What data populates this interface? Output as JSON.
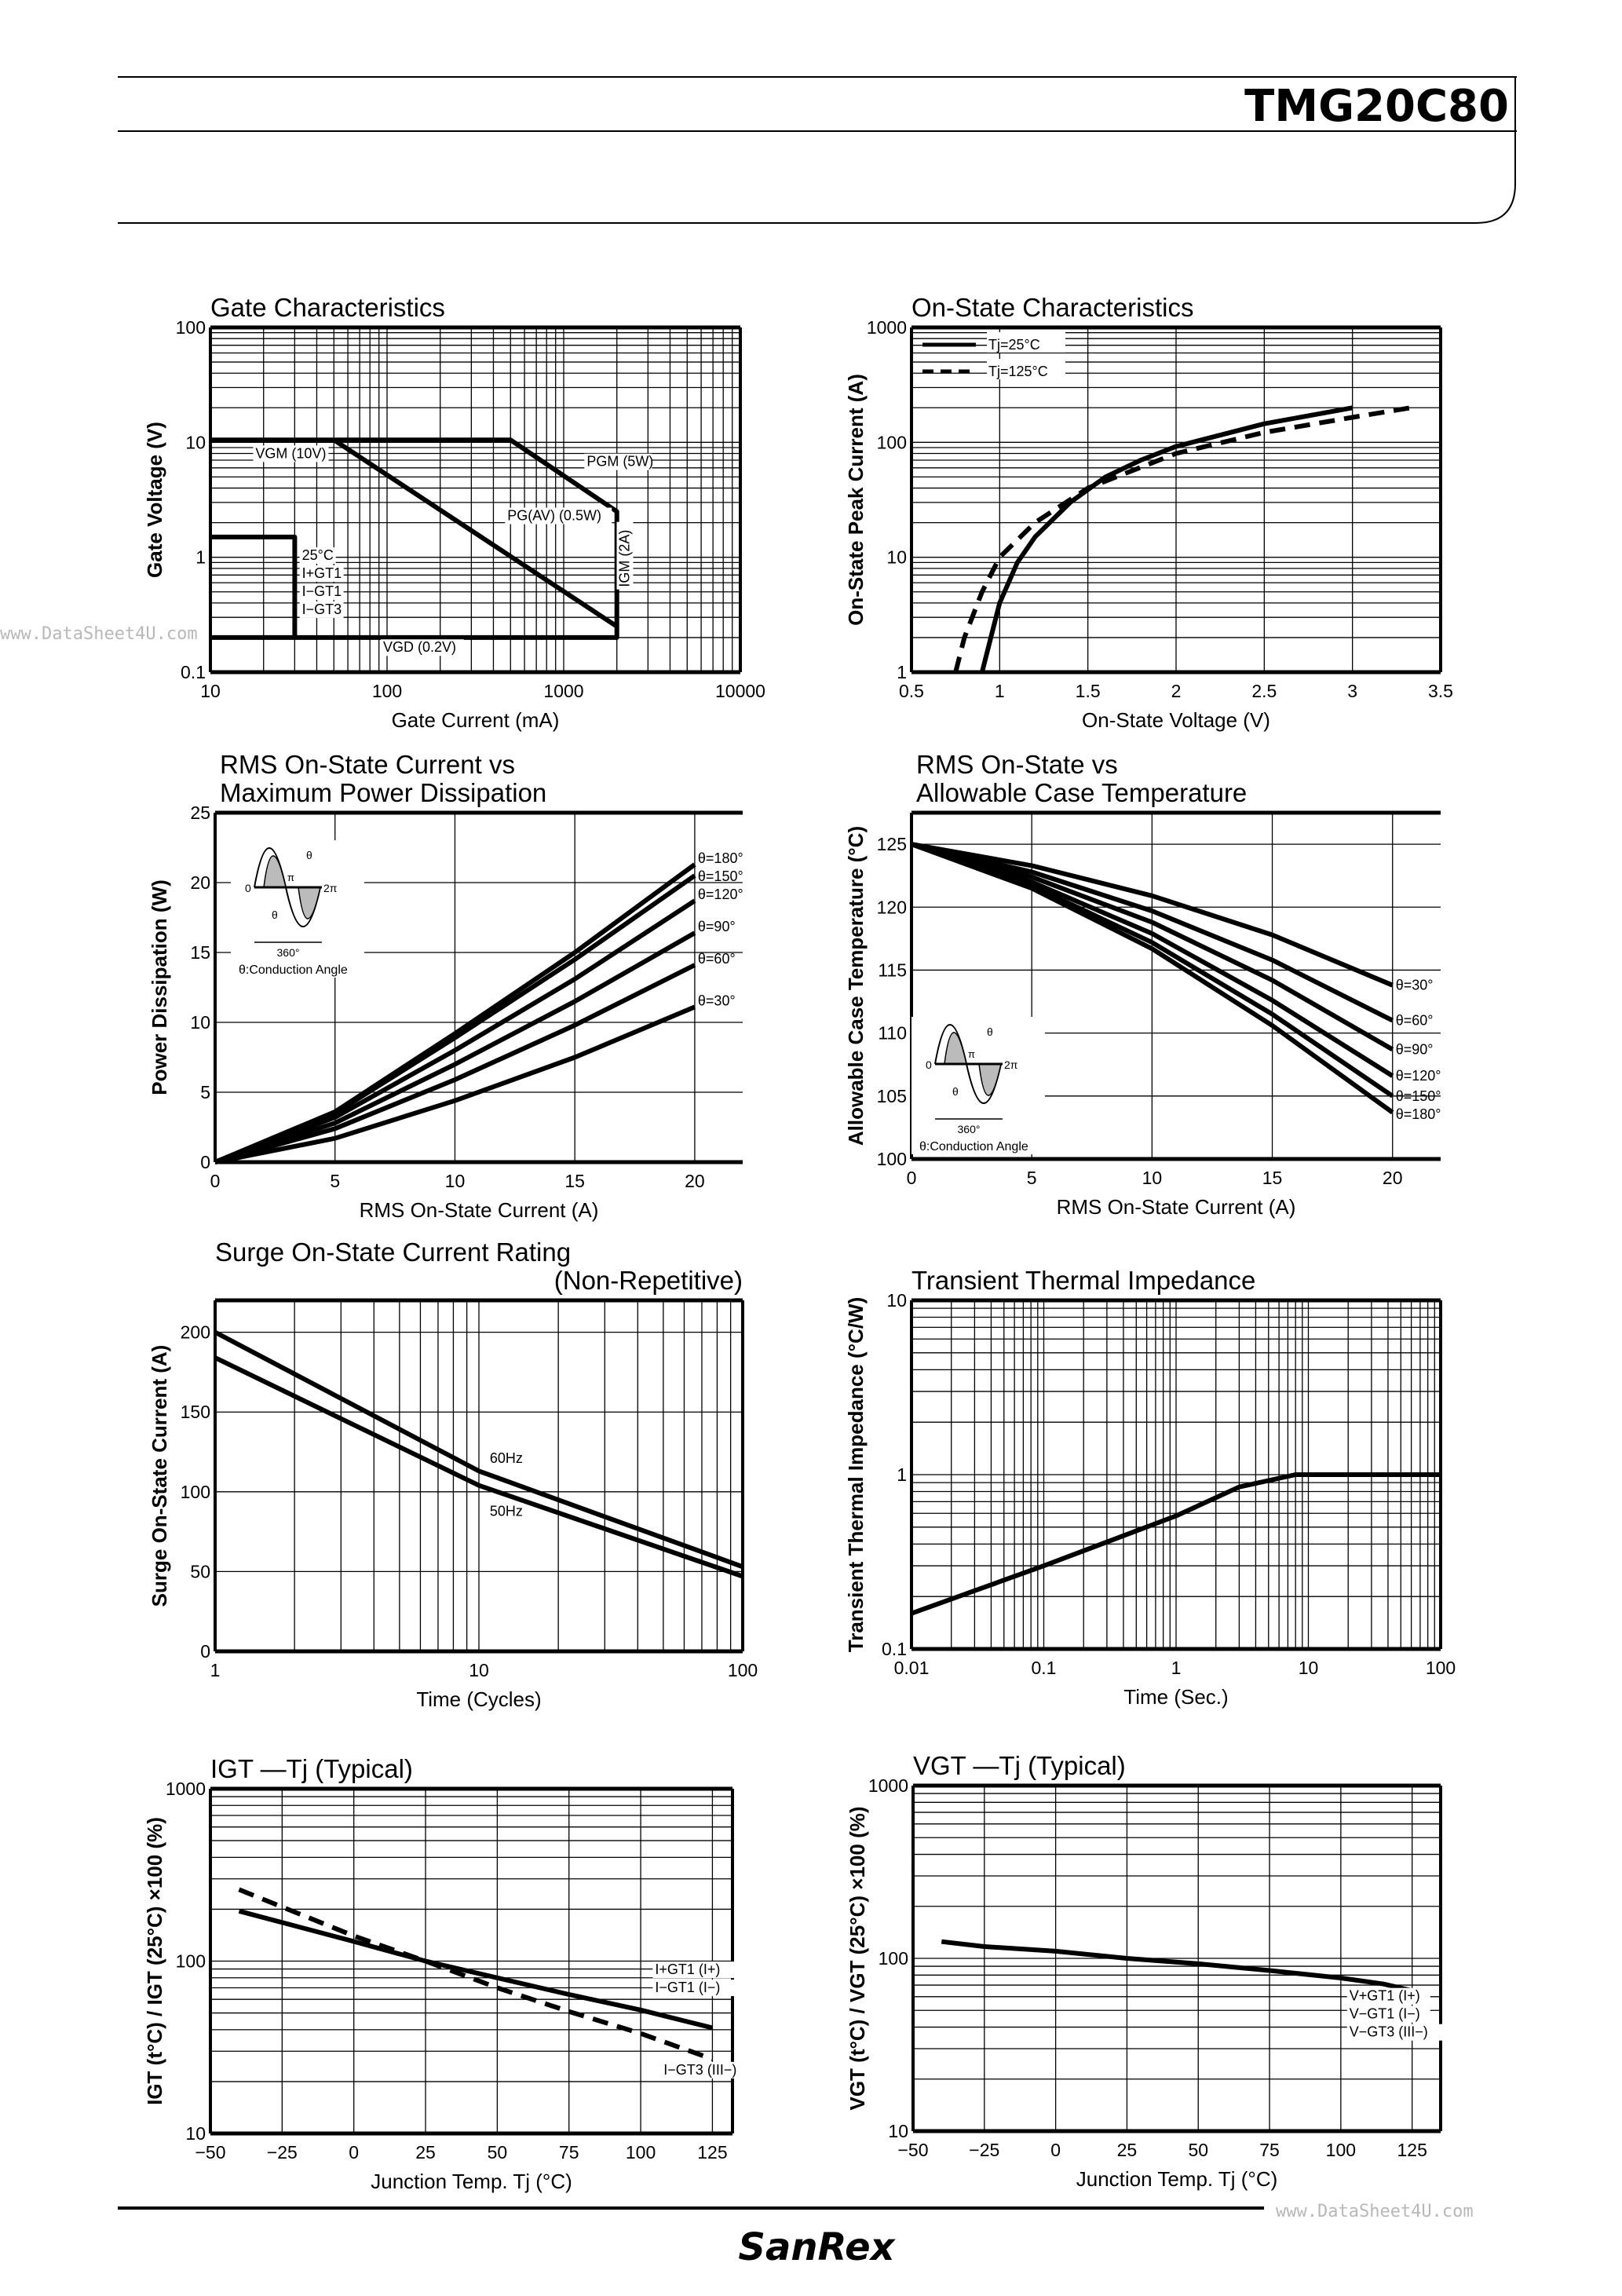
{
  "header": {
    "part_number": "TMG20C80"
  },
  "footer": {
    "logo": "SanRex"
  },
  "watermarks": [
    "www.DataSheet4U.com",
    "www.DataSheet4U.com"
  ],
  "colors": {
    "ink": "#000000",
    "grid": "#000000",
    "watermark": "#b8b8b8"
  },
  "chart_data": [
    {
      "type": "line",
      "title": [
        "Gate Characteristics"
      ],
      "xlabel": "Gate Current (mA)",
      "ylabel": "Gate Voltage (V)",
      "xscale": "log",
      "yscale": "log",
      "xlim": [
        10,
        10000
      ],
      "ylim": [
        0.1,
        100
      ],
      "xticks": [
        10,
        100,
        1000,
        10000
      ],
      "yticks": [
        0.1,
        1,
        10,
        100
      ],
      "xtick_labels": [
        "10",
        "100",
        "1000",
        "10000"
      ],
      "ytick_labels": [
        "0.1",
        "1",
        "10",
        "100"
      ],
      "grid": true,
      "series": [
        {
          "id": "gate-boundary",
          "points": [
            [
              10,
              10.5
            ],
            [
              500,
              10.5
            ],
            [
              2000,
              2.5
            ],
            [
              2000,
              0.2
            ],
            [
              10,
              0.2
            ]
          ]
        },
        {
          "id": "pg-av",
          "points": [
            [
              50,
              10.5
            ],
            [
              2000,
              0.25
            ]
          ]
        },
        {
          "id": "igt-region",
          "points": [
            [
              10,
              1.5
            ],
            [
              30,
              1.5
            ],
            [
              30,
              0.2
            ]
          ]
        }
      ],
      "annotations": [
        {
          "text": "VGM (10V)",
          "x": 18,
          "y": 7.3
        },
        {
          "text": "PGM (5W)",
          "x": 1350,
          "y": 6.2
        },
        {
          "text": "PG(AV) (0.5W)",
          "x": 480,
          "y": 2.1
        },
        {
          "text": "25°C",
          "x": 33,
          "y": 0.95
        },
        {
          "text": "I+GT1",
          "x": 33,
          "y": 0.68
        },
        {
          "text": "I−GT1",
          "x": 33,
          "y": 0.5
        },
        {
          "text": "I−GT3",
          "x": 33,
          "y": 0.37
        },
        {
          "text": "IGM (2A)",
          "x": 2350,
          "y": 0.55,
          "vertical": true
        },
        {
          "text": "VGD (0.2V)",
          "x": 95,
          "y": 0.15
        }
      ]
    },
    {
      "type": "line",
      "title": [
        "On-State Characteristics"
      ],
      "xlabel": "On-State Voltage (V)",
      "ylabel": "On-State Peak Current (A)",
      "xscale": "linear",
      "yscale": "log",
      "xlim": [
        0.5,
        3.5
      ],
      "ylim": [
        1,
        1000
      ],
      "xticks": [
        0.5,
        1,
        1.5,
        2,
        2.5,
        3,
        3.5
      ],
      "yticks": [
        1,
        10,
        100,
        1000
      ],
      "xtick_labels": [
        "0.5",
        "1",
        "1.5",
        "2",
        "2.5",
        "3",
        "3.5"
      ],
      "ytick_labels": [
        "1",
        "10",
        "100",
        "1000"
      ],
      "grid": true,
      "legend": "top-left",
      "series": [
        {
          "name": "Tj=25°C",
          "dashed": false,
          "points": [
            [
              0.9,
              1
            ],
            [
              0.95,
              2
            ],
            [
              1.0,
              4
            ],
            [
              1.1,
              9
            ],
            [
              1.2,
              15
            ],
            [
              1.4,
              30
            ],
            [
              1.6,
              50
            ],
            [
              1.8,
              70
            ],
            [
              2.0,
              92
            ],
            [
              2.5,
              145
            ],
            [
              3.0,
              200
            ]
          ]
        },
        {
          "name": "Tj=125°C",
          "dashed": true,
          "points": [
            [
              0.75,
              1
            ],
            [
              0.8,
              2
            ],
            [
              0.9,
              5
            ],
            [
              1.0,
              10
            ],
            [
              1.2,
              20
            ],
            [
              1.5,
              40
            ],
            [
              2.0,
              80
            ],
            [
              2.5,
              122
            ],
            [
              3.0,
              165
            ],
            [
              3.33,
              200
            ]
          ]
        }
      ],
      "annotations": []
    },
    {
      "type": "line",
      "title": [
        "RMS On-State Current vs",
        "Maximum Power Dissipation"
      ],
      "xlabel": "RMS On-State Current (A)",
      "ylabel": "Power Dissipation (W)",
      "xscale": "linear",
      "yscale": "linear",
      "xlim": [
        0,
        22
      ],
      "ylim": [
        0,
        25
      ],
      "xticks": [
        0,
        5,
        10,
        15,
        20
      ],
      "yticks": [
        0,
        5,
        10,
        15,
        20,
        25
      ],
      "xtick_labels": [
        "0",
        "5",
        "10",
        "15",
        "20"
      ],
      "ytick_labels": [
        "0",
        "5",
        "10",
        "15",
        "20",
        "25"
      ],
      "grid": true,
      "series": [
        {
          "name": "θ=180°",
          "points": [
            [
              0,
              0
            ],
            [
              5,
              3.6
            ],
            [
              10,
              9.2
            ],
            [
              15,
              15.0
            ],
            [
              20,
              21.3
            ]
          ]
        },
        {
          "name": "θ=150°",
          "points": [
            [
              0,
              0
            ],
            [
              5,
              3.5
            ],
            [
              10,
              8.9
            ],
            [
              15,
              14.5
            ],
            [
              20,
              20.5
            ]
          ]
        },
        {
          "name": "θ=120°",
          "points": [
            [
              0,
              0
            ],
            [
              5,
              3.2
            ],
            [
              10,
              8.0
            ],
            [
              15,
              13.1
            ],
            [
              20,
              18.7
            ]
          ]
        },
        {
          "name": "θ=90°",
          "points": [
            [
              0,
              0
            ],
            [
              5,
              2.8
            ],
            [
              10,
              7.0
            ],
            [
              15,
              11.5
            ],
            [
              20,
              16.4
            ]
          ]
        },
        {
          "name": "θ=60°",
          "points": [
            [
              0,
              0
            ],
            [
              5,
              2.4
            ],
            [
              10,
              5.9
            ],
            [
              15,
              9.8
            ],
            [
              20,
              14.1
            ]
          ]
        },
        {
          "name": "θ=30°",
          "points": [
            [
              0,
              0
            ],
            [
              5,
              1.7
            ],
            [
              10,
              4.4
            ],
            [
              15,
              7.5
            ],
            [
              20,
              11.1
            ]
          ]
        }
      ],
      "inset": {
        "zero": "0",
        "pi": "π",
        "two_pi": "2π",
        "theta": "θ",
        "period": "360°",
        "caption": "θ:Conduction Angle"
      },
      "annotations": []
    },
    {
      "type": "line",
      "title": [
        "RMS On-State vs",
        "Allowable Case Temperature"
      ],
      "xlabel": "RMS On-State Current (A)",
      "ylabel": "Allowable Case Temperature (°C)",
      "xscale": "linear",
      "yscale": "linear",
      "xlim": [
        0,
        22
      ],
      "ylim": [
        100,
        127.5
      ],
      "xticks": [
        0,
        5,
        10,
        15,
        20
      ],
      "yticks": [
        100,
        105,
        110,
        115,
        120,
        125
      ],
      "xtick_labels": [
        "0",
        "5",
        "10",
        "15",
        "20"
      ],
      "ytick_labels": [
        "100",
        "105",
        "110",
        "115",
        "120",
        "125"
      ],
      "grid": true,
      "series": [
        {
          "name": "θ=30°",
          "points": [
            [
              0,
              125
            ],
            [
              5,
              123.3
            ],
            [
              10,
              120.9
            ],
            [
              15,
              117.8
            ],
            [
              20,
              113.8
            ]
          ]
        },
        {
          "name": "θ=60°",
          "points": [
            [
              0,
              125
            ],
            [
              5,
              122.8
            ],
            [
              10,
              119.7
            ],
            [
              15,
              115.8
            ],
            [
              20,
              111
            ]
          ]
        },
        {
          "name": "θ=90°",
          "points": [
            [
              0,
              125
            ],
            [
              5,
              122.4
            ],
            [
              10,
              118.8
            ],
            [
              15,
              114.2
            ],
            [
              20,
              108.7
            ]
          ]
        },
        {
          "name": "θ=120°",
          "points": [
            [
              0,
              125
            ],
            [
              5,
              122
            ],
            [
              10,
              117.9
            ],
            [
              15,
              112.6
            ],
            [
              20,
              106.6
            ]
          ]
        },
        {
          "name": "θ=150°",
          "points": [
            [
              0,
              125
            ],
            [
              5,
              121.7
            ],
            [
              10,
              117.2
            ],
            [
              15,
              111.5
            ],
            [
              20,
              105
            ]
          ]
        },
        {
          "name": "θ=180°",
          "points": [
            [
              0,
              125
            ],
            [
              5,
              121.5
            ],
            [
              10,
              116.7
            ],
            [
              15,
              110.6
            ],
            [
              20,
              103.7
            ]
          ]
        }
      ],
      "inset": {
        "zero": "0",
        "pi": "π",
        "two_pi": "2π",
        "theta": "θ",
        "period": "360°",
        "caption": "θ:Conduction Angle"
      },
      "annotations": []
    },
    {
      "type": "line",
      "title": [
        "Surge On-State Current Rating",
        "(Non-Repetitive)"
      ],
      "xlabel": "Time (Cycles)",
      "ylabel": "Surge On-State Current (A)",
      "xscale": "log",
      "yscale": "linear",
      "xlim": [
        1,
        100
      ],
      "ylim": [
        0,
        220
      ],
      "xticks": [
        1,
        10,
        100
      ],
      "yticks": [
        0,
        50,
        100,
        150,
        200
      ],
      "xtick_labels": [
        "1",
        "10",
        "100"
      ],
      "ytick_labels": [
        "0",
        "50",
        "100",
        "150",
        "200"
      ],
      "grid": true,
      "series": [
        {
          "name": "60Hz",
          "points": [
            [
              1,
              200
            ],
            [
              10,
              113
            ],
            [
              100,
              53
            ]
          ]
        },
        {
          "name": "50Hz",
          "points": [
            [
              1,
              184
            ],
            [
              10,
              104
            ],
            [
              100,
              47
            ]
          ]
        }
      ],
      "annotations": [
        {
          "text": "60Hz",
          "x": 11,
          "y": 118
        },
        {
          "text": "50Hz",
          "x": 11,
          "y": 85
        }
      ]
    },
    {
      "type": "line",
      "title": [
        "Transient Thermal Impedance"
      ],
      "xlabel": "Time (Sec.)",
      "ylabel": "Transient Thermal Impedance (°C/W)",
      "xscale": "log",
      "yscale": "log",
      "xlim": [
        0.01,
        100
      ],
      "ylim": [
        0.1,
        10
      ],
      "xticks": [
        0.01,
        0.1,
        1,
        10,
        100
      ],
      "yticks": [
        0.1,
        1,
        10
      ],
      "xtick_labels": [
        "0.01",
        "0.1",
        "1",
        "10",
        "100"
      ],
      "ytick_labels": [
        "0.1",
        "1",
        "10"
      ],
      "grid": true,
      "series": [
        {
          "points": [
            [
              0.01,
              0.16
            ],
            [
              0.1,
              0.3
            ],
            [
              1,
              0.58
            ],
            [
              3,
              0.85
            ],
            [
              8,
              1.0
            ],
            [
              100,
              1.0
            ]
          ]
        }
      ],
      "annotations": []
    },
    {
      "type": "line",
      "title": [
        "IGT —Tj (Typical)"
      ],
      "xlabel": "Junction Temp. Tj (°C)",
      "ylabel": "IGT (t°C) / IGT (25°C) ×100 (%)",
      "xscale": "linear",
      "yscale": "log",
      "xlim": [
        -50,
        132
      ],
      "ylim": [
        10,
        1000
      ],
      "xticks": [
        -50,
        -25,
        0,
        25,
        50,
        75,
        100,
        125
      ],
      "yticks": [
        10,
        100,
        1000
      ],
      "xtick_labels": [
        "−50",
        "−25",
        "0",
        "25",
        "50",
        "75",
        "100",
        "125"
      ],
      "ytick_labels": [
        "10",
        "100",
        "1000"
      ],
      "grid": true,
      "series": [
        {
          "name": "I+GT1 (I+), I−GT1 (I−)",
          "dashed": false,
          "points": [
            [
              -40,
              195
            ],
            [
              0,
              130
            ],
            [
              25,
              100
            ],
            [
              50,
              80
            ],
            [
              75,
              64
            ],
            [
              100,
              52
            ],
            [
              125,
              41
            ]
          ]
        },
        {
          "name": "I−GT3 (III−)",
          "dashed": true,
          "points": [
            [
              -40,
              260
            ],
            [
              0,
              140
            ],
            [
              25,
              100
            ],
            [
              50,
              70
            ],
            [
              75,
              51
            ],
            [
              100,
              38
            ],
            [
              125,
              27
            ]
          ]
        }
      ],
      "annotations": [
        {
          "text": "I+GT1 (I+)",
          "x": 105,
          "y": 84
        },
        {
          "text": "I−GT1 (I−)",
          "x": 105,
          "y": 73
        },
        {
          "text": "I−GT3 (III−)",
          "x": 108,
          "y": 22
        }
      ]
    },
    {
      "type": "line",
      "title": [
        "VGT —Tj (Typical)"
      ],
      "xlabel": "Junction Temp. Tj (°C)",
      "ylabel": "VGT (t°C) / VGT (25°C) ×100 (%)",
      "xscale": "linear",
      "yscale": "log",
      "xlim": [
        -50,
        135
      ],
      "ylim": [
        10,
        1000
      ],
      "xticks": [
        -50,
        -25,
        0,
        25,
        50,
        75,
        100,
        125
      ],
      "yticks": [
        10,
        100,
        1000
      ],
      "xtick_labels": [
        "−50",
        "−25",
        "0",
        "25",
        "50",
        "75",
        "100",
        "125"
      ],
      "ytick_labels": [
        "10",
        "100",
        "1000"
      ],
      "grid": true,
      "series": [
        {
          "name": "V+GT1 (I+), V−GT1 (I−), V−GT3 (III−)",
          "points": [
            [
              -40,
              125
            ],
            [
              -25,
              117
            ],
            [
              0,
              110
            ],
            [
              25,
              100
            ],
            [
              50,
              93
            ],
            [
              75,
              85
            ],
            [
              100,
              77
            ],
            [
              115,
              71
            ],
            [
              125,
              65
            ]
          ]
        }
      ],
      "annotations": [
        {
          "text": "V+GT1 (I+)",
          "x": 103,
          "y": 57
        },
        {
          "text": "V−GT1 (I−)",
          "x": 103,
          "y": 47
        },
        {
          "text": "V−GT3 (III−)",
          "x": 103,
          "y": 38.5
        }
      ]
    }
  ]
}
